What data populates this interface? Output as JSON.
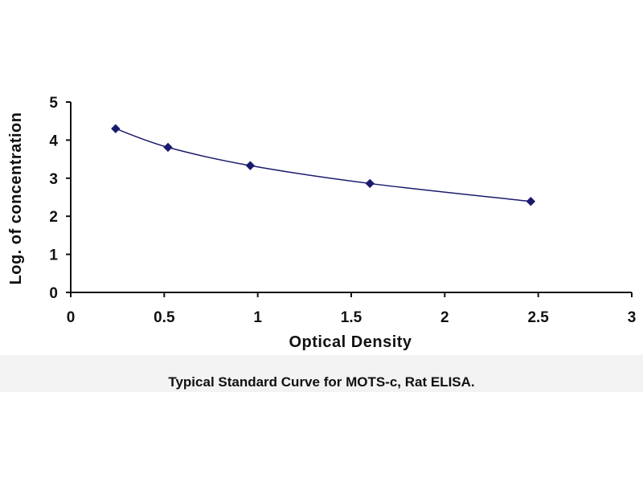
{
  "chart_data": {
    "type": "line",
    "title": "",
    "caption": "Typical Standard Curve for MOTS-c, Rat ELISA.",
    "xlabel": "Optical Density",
    "ylabel": "Log. of concentration",
    "xlim": [
      0,
      3
    ],
    "ylim": [
      0,
      5
    ],
    "x_ticks": [
      0,
      0.5,
      1,
      1.5,
      2,
      2.5,
      3
    ],
    "x_tick_labels": [
      "0",
      "0.5",
      "1",
      "1.5",
      "2",
      "2.5",
      "3"
    ],
    "y_ticks": [
      0,
      1,
      2,
      3,
      4,
      5
    ],
    "y_tick_labels": [
      "0",
      "1",
      "2",
      "3",
      "4",
      "5"
    ],
    "grid": false,
    "legend": "none",
    "series": [
      {
        "marker": "diamond",
        "color": "#1a1a6e",
        "x": [
          0.24,
          0.52,
          0.96,
          1.6,
          2.46
        ],
        "y": [
          4.3,
          3.81,
          3.33,
          2.86,
          2.39
        ]
      }
    ]
  }
}
